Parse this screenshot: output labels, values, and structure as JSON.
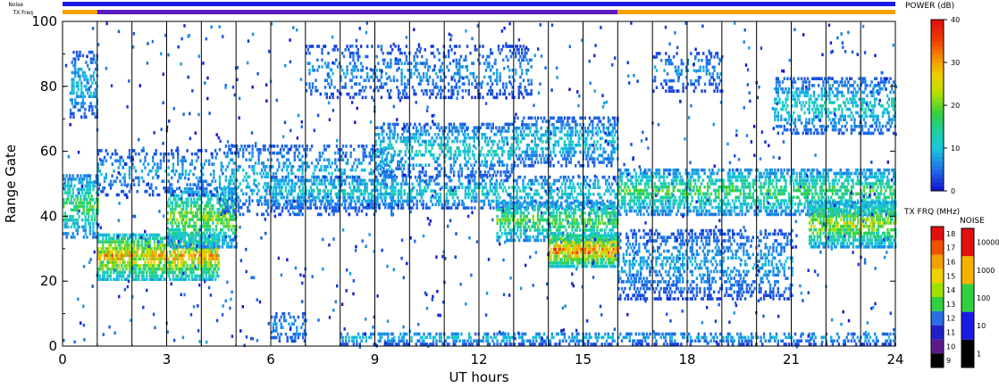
{
  "header": {
    "noise_label": "Noise",
    "txfreq_label": "TX Freq"
  },
  "chart_data": {
    "type": "heatmap",
    "xlabel": "UT hours",
    "ylabel": "Range Gate",
    "xlim": [
      0,
      24
    ],
    "ylim": [
      0,
      100
    ],
    "x_ticks": [
      "0",
      "3",
      "6",
      "9",
      "12",
      "15",
      "18",
      "21",
      "24"
    ],
    "y_ticks": [
      "0",
      "20",
      "40",
      "60",
      "80",
      "100"
    ],
    "scan_boundaries_ut": [
      1,
      2,
      3,
      4,
      5,
      6,
      7,
      8,
      9,
      10,
      11,
      12,
      13,
      14,
      15,
      16,
      17,
      18,
      19,
      20,
      21,
      22,
      23
    ],
    "bands": [
      {
        "t0": 0.0,
        "t1": 1.0,
        "r0": 33,
        "r1": 52,
        "peak": 20,
        "density": 0.55
      },
      {
        "t0": 0.2,
        "t1": 1.0,
        "r0": 70,
        "r1": 90,
        "peak": 12,
        "density": 0.4
      },
      {
        "t0": 1.0,
        "t1": 4.5,
        "r0": 20,
        "r1": 34,
        "peak": 32,
        "density": 0.75
      },
      {
        "t0": 3.0,
        "t1": 5.0,
        "r0": 30,
        "r1": 48,
        "peak": 24,
        "density": 0.6
      },
      {
        "t0": 1.0,
        "t1": 4.5,
        "r0": 46,
        "r1": 60,
        "peak": 10,
        "density": 0.25
      },
      {
        "t0": 4.5,
        "t1": 9.5,
        "r0": 40,
        "r1": 62,
        "peak": 12,
        "density": 0.3
      },
      {
        "t0": 6.0,
        "t1": 16.0,
        "r0": 42,
        "r1": 52,
        "peak": 14,
        "density": 0.4
      },
      {
        "t0": 9.0,
        "t1": 13.0,
        "r0": 52,
        "r1": 68,
        "peak": 14,
        "density": 0.4
      },
      {
        "t0": 12.5,
        "t1": 16.0,
        "r0": 32,
        "r1": 44,
        "peak": 22,
        "density": 0.55
      },
      {
        "t0": 14.0,
        "t1": 16.0,
        "r0": 24,
        "r1": 34,
        "peak": 36,
        "density": 0.8
      },
      {
        "t0": 13.0,
        "t1": 16.0,
        "r0": 55,
        "r1": 70,
        "peak": 13,
        "density": 0.4
      },
      {
        "t0": 7.0,
        "t1": 13.5,
        "r0": 76,
        "r1": 92,
        "peak": 9,
        "density": 0.25
      },
      {
        "t0": 6.0,
        "t1": 7.0,
        "r0": 1,
        "r1": 10,
        "peak": 10,
        "density": 0.35
      },
      {
        "t0": 8.0,
        "t1": 16.0,
        "r0": 0,
        "r1": 4,
        "peak": 12,
        "density": 0.45
      },
      {
        "t0": 16.0,
        "t1": 24.0,
        "r0": 40,
        "r1": 54,
        "peak": 20,
        "density": 0.55
      },
      {
        "t0": 16.0,
        "t1": 21.0,
        "r0": 14,
        "r1": 36,
        "peak": 10,
        "density": 0.35
      },
      {
        "t0": 21.5,
        "t1": 24.0,
        "r0": 30,
        "r1": 44,
        "peak": 26,
        "density": 0.7
      },
      {
        "t0": 17.0,
        "t1": 19.0,
        "r0": 78,
        "r1": 90,
        "peak": 9,
        "density": 0.25
      },
      {
        "t0": 20.5,
        "t1": 24.0,
        "r0": 65,
        "r1": 82,
        "peak": 14,
        "density": 0.4
      },
      {
        "t0": 16.0,
        "t1": 24.0,
        "r0": 0,
        "r1": 4,
        "peak": 10,
        "density": 0.4
      }
    ],
    "noise_bar": [
      {
        "t0": 0,
        "t1": 24,
        "color": "#1a1ae6"
      }
    ],
    "txfreq_bar": [
      {
        "t0": 0,
        "t1": 1,
        "color": "#f5a000"
      },
      {
        "t0": 1,
        "t1": 16,
        "color": "#5b1abf"
      },
      {
        "t0": 16,
        "t1": 24,
        "color": "#f5a000"
      }
    ],
    "power_scale": {
      "title": "POWER (dB)",
      "range": [
        0,
        40
      ],
      "ticks": [
        "0",
        "10",
        "20",
        "30",
        "40"
      ]
    },
    "txfreq_scale": {
      "title": "TX FRQ (MHz)",
      "ticks": [
        "9",
        "10",
        "11",
        "12",
        "13",
        "14",
        "15",
        "16",
        "17",
        "18"
      ],
      "colors": [
        "#000000",
        "#5b1a8c",
        "#2020c8",
        "#2a6ee6",
        "#30d040",
        "#a0e000",
        "#f0d000",
        "#f5a000",
        "#f05000",
        "#e01010"
      ]
    },
    "noise_scale": {
      "title": "NOISE",
      "ticks": [
        "1",
        "10",
        "100",
        "1000",
        "10000"
      ],
      "colors": [
        "#000000",
        "#1a1ae6",
        "#30d040",
        "#f5b000",
        "#e01010"
      ]
    }
  }
}
